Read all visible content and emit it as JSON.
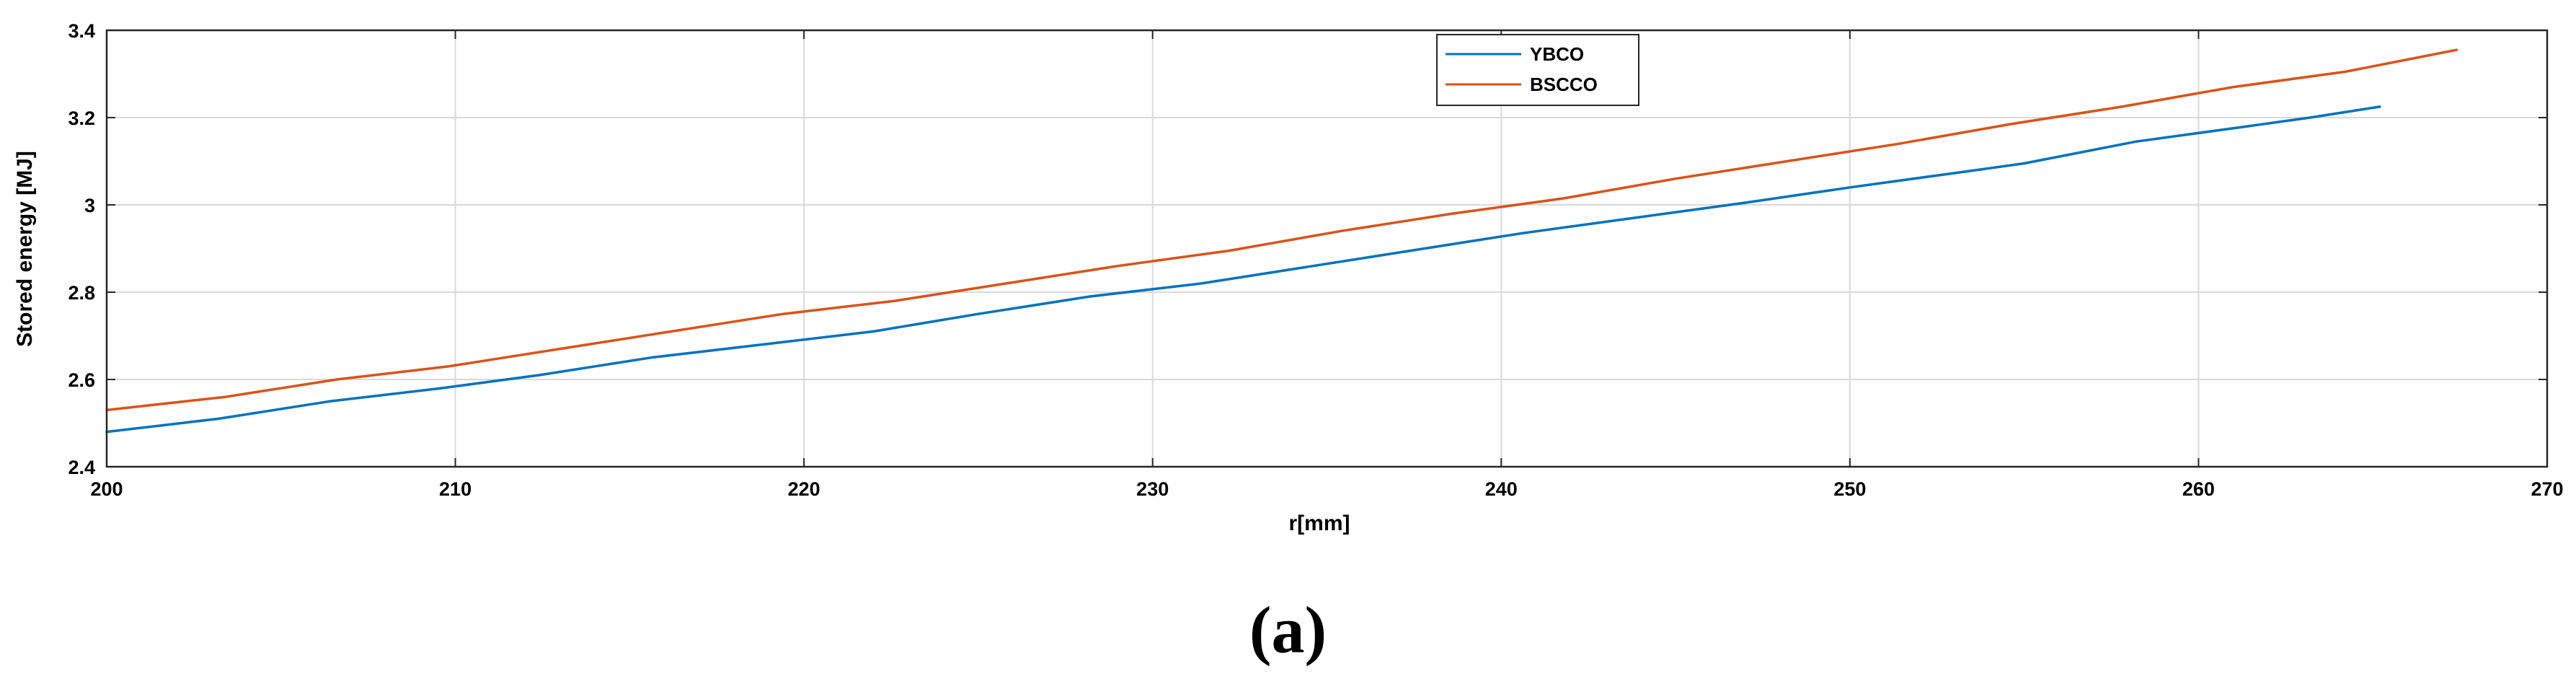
{
  "chart_data": {
    "type": "line",
    "title": "",
    "xlabel": "r[mm]",
    "ylabel": "Stored energy [MJ]",
    "xlim": [
      200,
      270
    ],
    "ylim": [
      2.4,
      3.4
    ],
    "xticks": [
      200,
      210,
      220,
      230,
      240,
      250,
      260,
      270
    ],
    "xtick_labels": [
      "200",
      "210",
      "220",
      "230",
      "240",
      "250",
      "260",
      "270"
    ],
    "yticks": [
      2.4,
      2.6,
      2.8,
      3.0,
      3.2,
      3.4
    ],
    "ytick_labels": [
      "2.4",
      "2.6",
      "2.8",
      "3",
      "3.2",
      "3.4"
    ],
    "grid": true,
    "legend_position": "top-center",
    "series": [
      {
        "name": "YBCO",
        "color": "#0072BD",
        "x": [
          200,
          203.2,
          206.4,
          209.6,
          212.4,
          215.6,
          218.8,
          222.0,
          225.0,
          228.2,
          231.4,
          234.6,
          237.4,
          240.6,
          243.8,
          247.0,
          250.0,
          253.2,
          255.0,
          258.2,
          261.4,
          263.2,
          265.2
        ],
        "y": [
          2.48,
          2.51,
          2.55,
          2.58,
          2.61,
          2.65,
          2.68,
          2.71,
          2.75,
          2.79,
          2.82,
          2.86,
          2.895,
          2.935,
          2.97,
          3.005,
          3.04,
          3.075,
          3.095,
          3.145,
          3.18,
          3.2,
          3.225
        ]
      },
      {
        "name": "BSCCO",
        "color": "#D95319",
        "x": [
          200,
          203.4,
          206.6,
          209.8,
          213.0,
          216.2,
          219.4,
          222.6,
          225.8,
          229.0,
          232.2,
          235.4,
          238.6,
          241.8,
          245.0,
          248.2,
          251.4,
          254.6,
          257.8,
          261.0,
          264.2,
          267.4
        ],
        "y": [
          2.53,
          2.56,
          2.6,
          2.63,
          2.67,
          2.71,
          2.75,
          2.78,
          2.82,
          2.86,
          2.895,
          2.94,
          2.98,
          3.015,
          3.06,
          3.1,
          3.14,
          3.185,
          3.225,
          3.27,
          3.305,
          3.355
        ]
      }
    ],
    "caption": "(a)"
  }
}
